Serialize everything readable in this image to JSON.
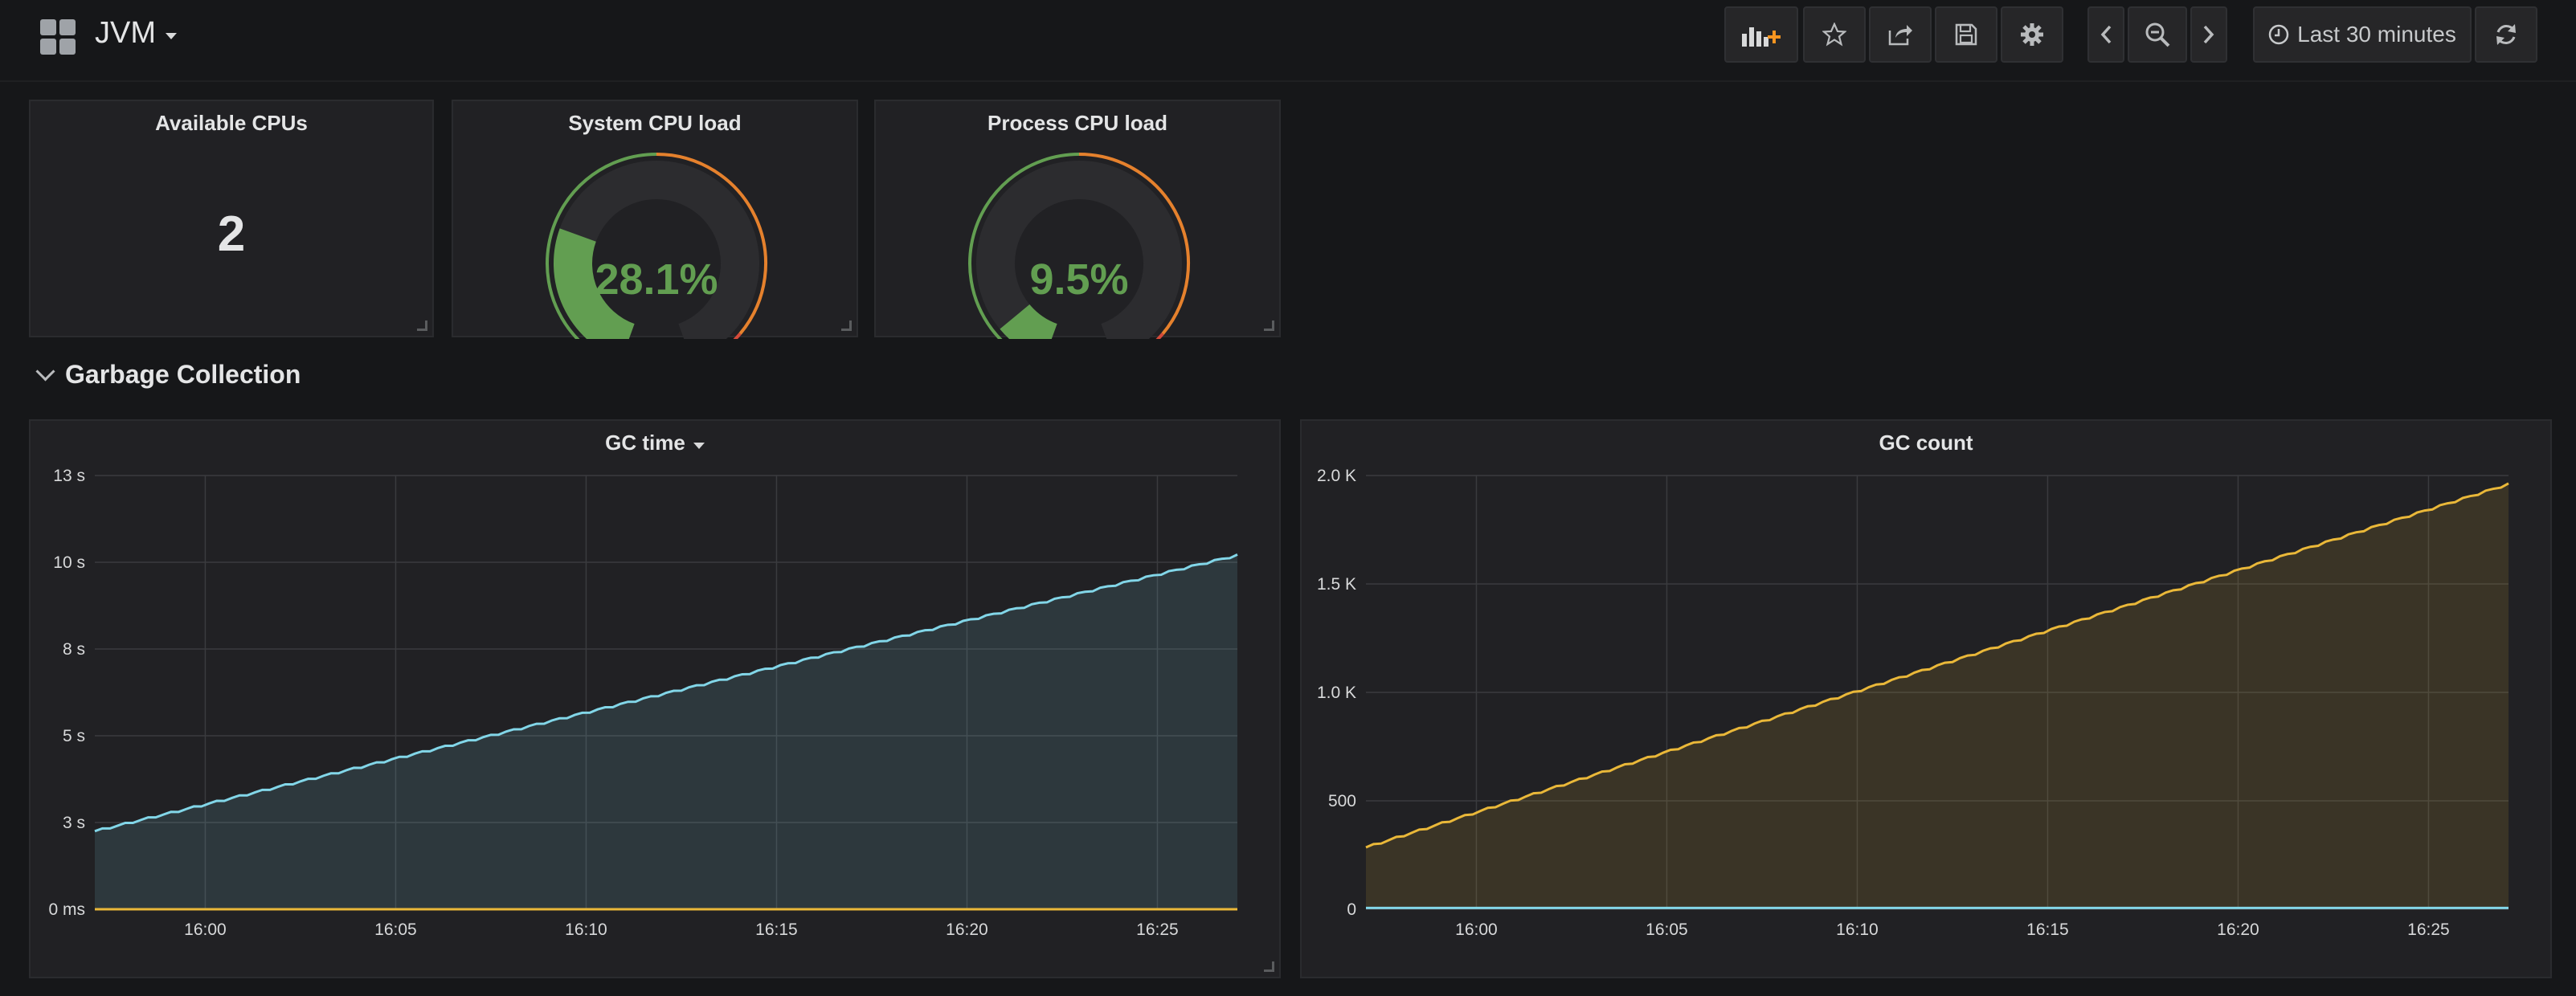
{
  "dashboard": {
    "title": "JVM"
  },
  "toolbar": {
    "buttons": [
      "add-panel-icon",
      "star-icon",
      "share-icon",
      "save-icon",
      "settings-icon"
    ],
    "time_range_label": "Last 30 minutes"
  },
  "stats": {
    "available_cpus": {
      "title": "Available CPUs",
      "value": "2"
    },
    "system_cpu": {
      "title": "System CPU load",
      "value": "28.1%",
      "fraction": 0.281
    },
    "process_cpu": {
      "title": "Process CPU load",
      "value": "9.5%",
      "fraction": 0.095
    }
  },
  "colors": {
    "green": "#629e51",
    "orange": "#e5ac0e",
    "red": "#bf1b00",
    "gc_time_series": "#7eb26d",
    "cyan_line": "#82d6e8",
    "yellow_line": "#eab839"
  },
  "row": {
    "title": "Garbage Collection"
  },
  "chart_data": [
    {
      "type": "line",
      "title": "GC time",
      "x_tick_labels": [
        "16:00",
        "16:05",
        "16:10",
        "16:15",
        "16:20",
        "16:25"
      ],
      "x_range_minutes": [
        -2.9,
        27.1
      ],
      "y_tick_labels": [
        "0 ms",
        "3 s",
        "5 s",
        "8 s",
        "10 s",
        "13 s"
      ],
      "y_ticks_seconds": [
        0,
        2.5,
        5,
        7.5,
        10,
        12.5
      ],
      "ylim": [
        0,
        12.5
      ],
      "grid": true,
      "series": [
        {
          "color": "#82d6e8",
          "fill": true,
          "start": 2.25,
          "end": 10.2
        },
        {
          "color": "#eab839",
          "fill": false,
          "start": 0.0,
          "end": 0.0
        }
      ]
    },
    {
      "type": "line",
      "title": "GC count",
      "x_tick_labels": [
        "16:00",
        "16:05",
        "16:10",
        "16:15",
        "16:20",
        "16:25"
      ],
      "x_range_minutes": [
        -2.9,
        27.1
      ],
      "y_tick_labels": [
        "0",
        "500",
        "1.0 K",
        "1.5 K",
        "2.0 K"
      ],
      "y_ticks": [
        0,
        500,
        1000,
        1500,
        2000
      ],
      "ylim": [
        0,
        2000
      ],
      "grid": true,
      "series": [
        {
          "color": "#eab839",
          "fill": true,
          "start": 285,
          "end": 1960
        },
        {
          "color": "#82d6e8",
          "fill": false,
          "start": 6,
          "end": 6
        }
      ]
    }
  ]
}
